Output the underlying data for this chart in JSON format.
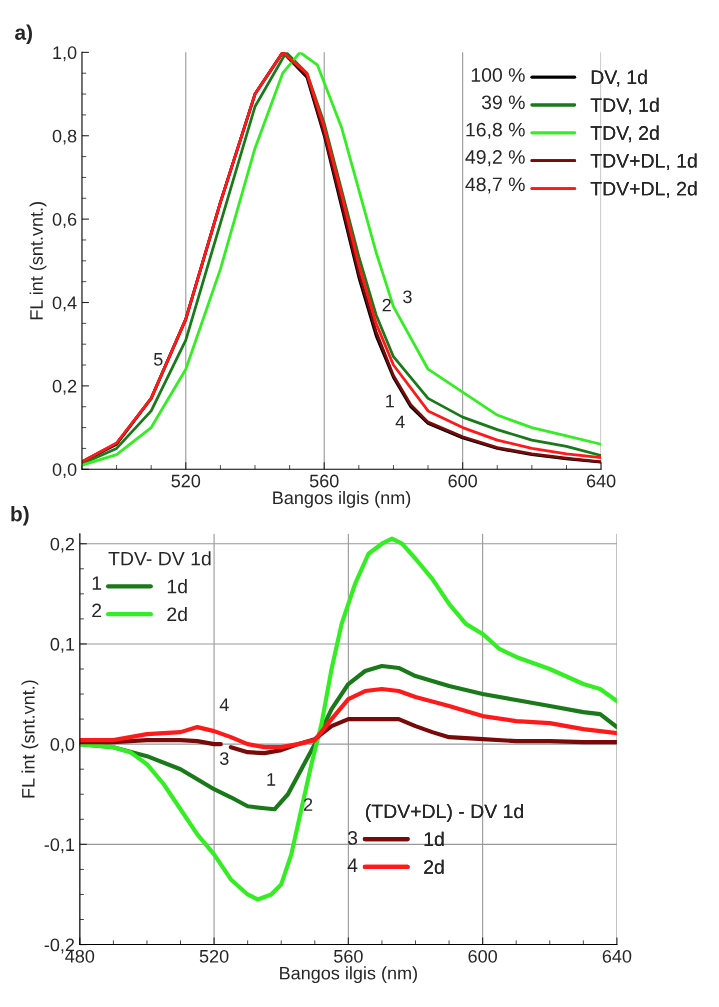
{
  "chart_data": [
    {
      "type": "line",
      "title": "a)",
      "xlabel": "Bangos ilgis (nm)",
      "ylabel": "FL int (snt.vnt.)",
      "xlim": [
        490,
        640
      ],
      "xticks": [
        520,
        560,
        600,
        640
      ],
      "ylim": [
        0,
        1.0
      ],
      "yticks": [
        {
          "value": 0,
          "label": "0,0"
        },
        {
          "value": 0.2,
          "label": "0,2"
        },
        {
          "value": 0.4,
          "label": "0,4"
        },
        {
          "value": 0.6,
          "label": "0,6"
        },
        {
          "value": 0.8,
          "label": "0,8"
        },
        {
          "value": 1.0,
          "label": "1,0"
        }
      ],
      "grid": "x",
      "legend": "top right",
      "series": [
        {
          "name": "DV, 1d",
          "color": "#000000",
          "x": [
            490,
            500,
            510,
            520,
            530,
            540,
            548,
            555,
            560,
            565,
            570,
            575,
            580,
            585,
            590,
            600,
            610,
            620,
            630,
            640
          ],
          "values": [
            0.017,
            0.06,
            0.17,
            0.36,
            0.64,
            0.9,
            1.0,
            0.94,
            0.8,
            0.63,
            0.46,
            0.32,
            0.22,
            0.15,
            0.11,
            0.075,
            0.05,
            0.035,
            0.025,
            0.017
          ]
        },
        {
          "name": "TDV, 1d",
          "color": "#1a7a1a",
          "x": [
            490,
            500,
            510,
            520,
            530,
            540,
            549,
            555,
            560,
            565,
            570,
            575,
            580,
            590,
            600,
            610,
            620,
            630,
            640
          ],
          "values": [
            0.013,
            0.05,
            0.14,
            0.31,
            0.59,
            0.87,
            1.0,
            0.95,
            0.83,
            0.67,
            0.51,
            0.37,
            0.27,
            0.17,
            0.125,
            0.095,
            0.07,
            0.055,
            0.033
          ]
        },
        {
          "name": "TDV, 2d",
          "color": "#33ee22",
          "x": [
            490,
            500,
            510,
            520,
            530,
            540,
            548,
            553,
            558,
            565,
            570,
            575,
            580,
            590,
            600,
            610,
            620,
            630,
            640
          ],
          "values": [
            0.01,
            0.035,
            0.1,
            0.24,
            0.48,
            0.77,
            0.95,
            1.0,
            0.97,
            0.82,
            0.67,
            0.52,
            0.39,
            0.24,
            0.185,
            0.13,
            0.1,
            0.08,
            0.06
          ]
        },
        {
          "name": "TDV+DL, 1d",
          "color": "#7a0a0a",
          "x": [
            490,
            500,
            510,
            520,
            530,
            540,
            548,
            555,
            560,
            565,
            570,
            575,
            580,
            585,
            590,
            600,
            610,
            620,
            630,
            640
          ],
          "values": [
            0.018,
            0.062,
            0.17,
            0.36,
            0.64,
            0.9,
            1.0,
            0.945,
            0.805,
            0.64,
            0.47,
            0.33,
            0.225,
            0.155,
            0.113,
            0.078,
            0.052,
            0.037,
            0.027,
            0.018
          ]
        },
        {
          "name": "TDV+DL, 2d",
          "color": "#ff1a1a",
          "x": [
            490,
            500,
            510,
            520,
            530,
            540,
            548,
            555,
            560,
            565,
            570,
            575,
            580,
            590,
            600,
            610,
            620,
            630,
            640
          ],
          "values": [
            0.018,
            0.063,
            0.17,
            0.36,
            0.64,
            0.9,
            1.0,
            0.95,
            0.82,
            0.66,
            0.49,
            0.35,
            0.25,
            0.14,
            0.1,
            0.07,
            0.05,
            0.037,
            0.028
          ]
        }
      ],
      "annotations": [
        "100 %",
        "39 %",
        "16,8 %",
        "49,2 %",
        "48,7 %",
        "1",
        "2",
        "3",
        "4",
        "5"
      ]
    },
    {
      "type": "line",
      "title": "b)",
      "xlabel": "Bangos ilgis (nm)",
      "ylabel": "FL int (snt.vnt.)",
      "xlim": [
        480,
        640
      ],
      "xticks": [
        480,
        520,
        560,
        600,
        640
      ],
      "ylim": [
        -0.2,
        0.21
      ],
      "yticks": [
        {
          "value": -0.2,
          "label": "-0,2"
        },
        {
          "value": -0.1,
          "label": "-0,1"
        },
        {
          "value": 0,
          "label": "0,0"
        },
        {
          "value": 0.1,
          "label": "0,1"
        },
        {
          "value": 0.2,
          "label": "0,2"
        }
      ],
      "grid": true,
      "legend": "top left",
      "legend_title": "TDV- DV 1d",
      "series": [
        {
          "name": "1d",
          "color": "#1a7a1a",
          "x": [
            480,
            490,
            500,
            510,
            520,
            525,
            530,
            535,
            538,
            542,
            546,
            550,
            555,
            560,
            565,
            570,
            575,
            580,
            590,
            600,
            610,
            620,
            630,
            635,
            640
          ],
          "values": [
            0,
            -0.003,
            -0.012,
            -0.025,
            -0.045,
            -0.053,
            -0.062,
            -0.064,
            -0.065,
            -0.05,
            -0.025,
            0.0,
            0.035,
            0.06,
            0.073,
            0.078,
            0.076,
            0.068,
            0.058,
            0.05,
            0.044,
            0.038,
            0.032,
            0.03,
            0.017
          ]
        },
        {
          "name": "2d",
          "color": "#33ee22",
          "x": [
            480,
            490,
            495,
            500,
            505,
            510,
            515,
            520,
            525,
            530,
            533,
            537,
            540,
            543,
            546,
            549,
            552,
            555,
            558,
            562,
            566,
            570,
            573,
            576,
            580,
            585,
            590,
            595,
            600,
            605,
            610,
            620,
            630,
            635,
            640
          ],
          "values": [
            0,
            -0.003,
            -0.008,
            -0.02,
            -0.04,
            -0.065,
            -0.09,
            -0.11,
            -0.135,
            -0.15,
            -0.155,
            -0.15,
            -0.14,
            -0.11,
            -0.065,
            -0.02,
            0.02,
            0.075,
            0.12,
            0.16,
            0.19,
            0.2,
            0.205,
            0.2,
            0.185,
            0.165,
            0.14,
            0.12,
            0.11,
            0.095,
            0.087,
            0.075,
            0.06,
            0.055,
            0.043
          ]
        },
        {
          "name": "1d",
          "color": "#7a0a0a",
          "x": [
            480,
            490,
            500,
            510,
            515,
            520,
            522,
            523,
            525,
            530,
            535,
            540,
            545,
            550,
            555,
            560,
            565,
            570,
            575,
            580,
            585,
            590,
            600,
            610,
            620,
            630,
            640
          ],
          "values": [
            0.002,
            0.002,
            0.004,
            0.004,
            0.003,
            0.0,
            0.0,
            null,
            -0.003,
            -0.008,
            -0.009,
            -0.006,
            0.0,
            0.005,
            0.018,
            0.025,
            0.025,
            0.025,
            0.025,
            0.018,
            0.012,
            0.007,
            0.005,
            0.003,
            0.003,
            0.002,
            0.002
          ]
        },
        {
          "name": "2d",
          "color": "#ff1a1a",
          "x": [
            480,
            490,
            500,
            510,
            515,
            520,
            525,
            530,
            535,
            540,
            545,
            550,
            555,
            560,
            565,
            570,
            575,
            580,
            590,
            600,
            610,
            620,
            630,
            640
          ],
          "values": [
            0.004,
            0.004,
            0.01,
            0.012,
            0.017,
            0.013,
            0.007,
            0.0,
            -0.003,
            -0.003,
            0.0,
            0.004,
            0.025,
            0.045,
            0.053,
            0.055,
            0.053,
            0.047,
            0.038,
            0.028,
            0.023,
            0.021,
            0.015,
            0.011
          ]
        }
      ],
      "annotations": [
        "1",
        "2",
        "3",
        "4",
        "(TDV+DL) - DV 1d",
        "4",
        "3",
        "1",
        "2"
      ]
    }
  ]
}
